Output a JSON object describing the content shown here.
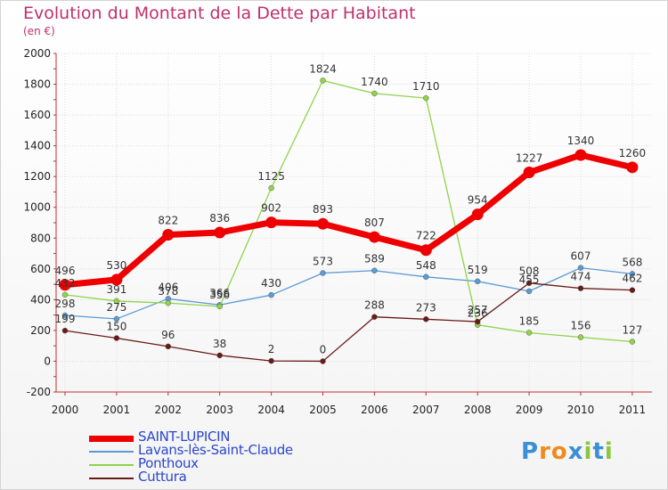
{
  "chart_data": {
    "type": "line",
    "title": "Evolution du Montant de la Dette par Habitant",
    "subtitle": "(en €)",
    "categories": [
      "2000",
      "2001",
      "2002",
      "2003",
      "2004",
      "2005",
      "2006",
      "2007",
      "2008",
      "2009",
      "2010",
      "2011"
    ],
    "ylim": [
      -200,
      2000
    ],
    "yticks": [
      -200,
      0,
      200,
      400,
      600,
      800,
      1000,
      1200,
      1400,
      1600,
      1800,
      2000
    ],
    "grid": true,
    "legend_position": "bottom-left",
    "series": [
      {
        "name": "SAINT-LUPICIN",
        "color": "#ee0000",
        "values": [
          496,
          530,
          822,
          836,
          902,
          893,
          807,
          722,
          954,
          1227,
          1340,
          1260
        ]
      },
      {
        "name": "Lavans-lès-Saint-Claude",
        "color": "#5b9bd5",
        "values": [
          298,
          275,
          406,
          366,
          430,
          573,
          589,
          548,
          519,
          455,
          607,
          568
        ]
      },
      {
        "name": "Ponthoux",
        "color": "#8fd44a",
        "values": [
          432,
          391,
          378,
          356,
          1125,
          1824,
          1740,
          1710,
          236,
          185,
          156,
          127
        ]
      },
      {
        "name": "Cuttura",
        "color": "#6b1a1a",
        "values": [
          199,
          150,
          96,
          38,
          2,
          0,
          288,
          273,
          257,
          508,
          474,
          462
        ]
      }
    ]
  },
  "logo": {
    "letters": [
      "P",
      "r",
      "o",
      "x",
      "i",
      "t",
      "i"
    ],
    "colors": [
      "#3a8fd6",
      "#f08a1c",
      "#f08a1c",
      "#3a8fd6",
      "#8cc63f",
      "#3a8fd6",
      "#8cc63f"
    ]
  }
}
